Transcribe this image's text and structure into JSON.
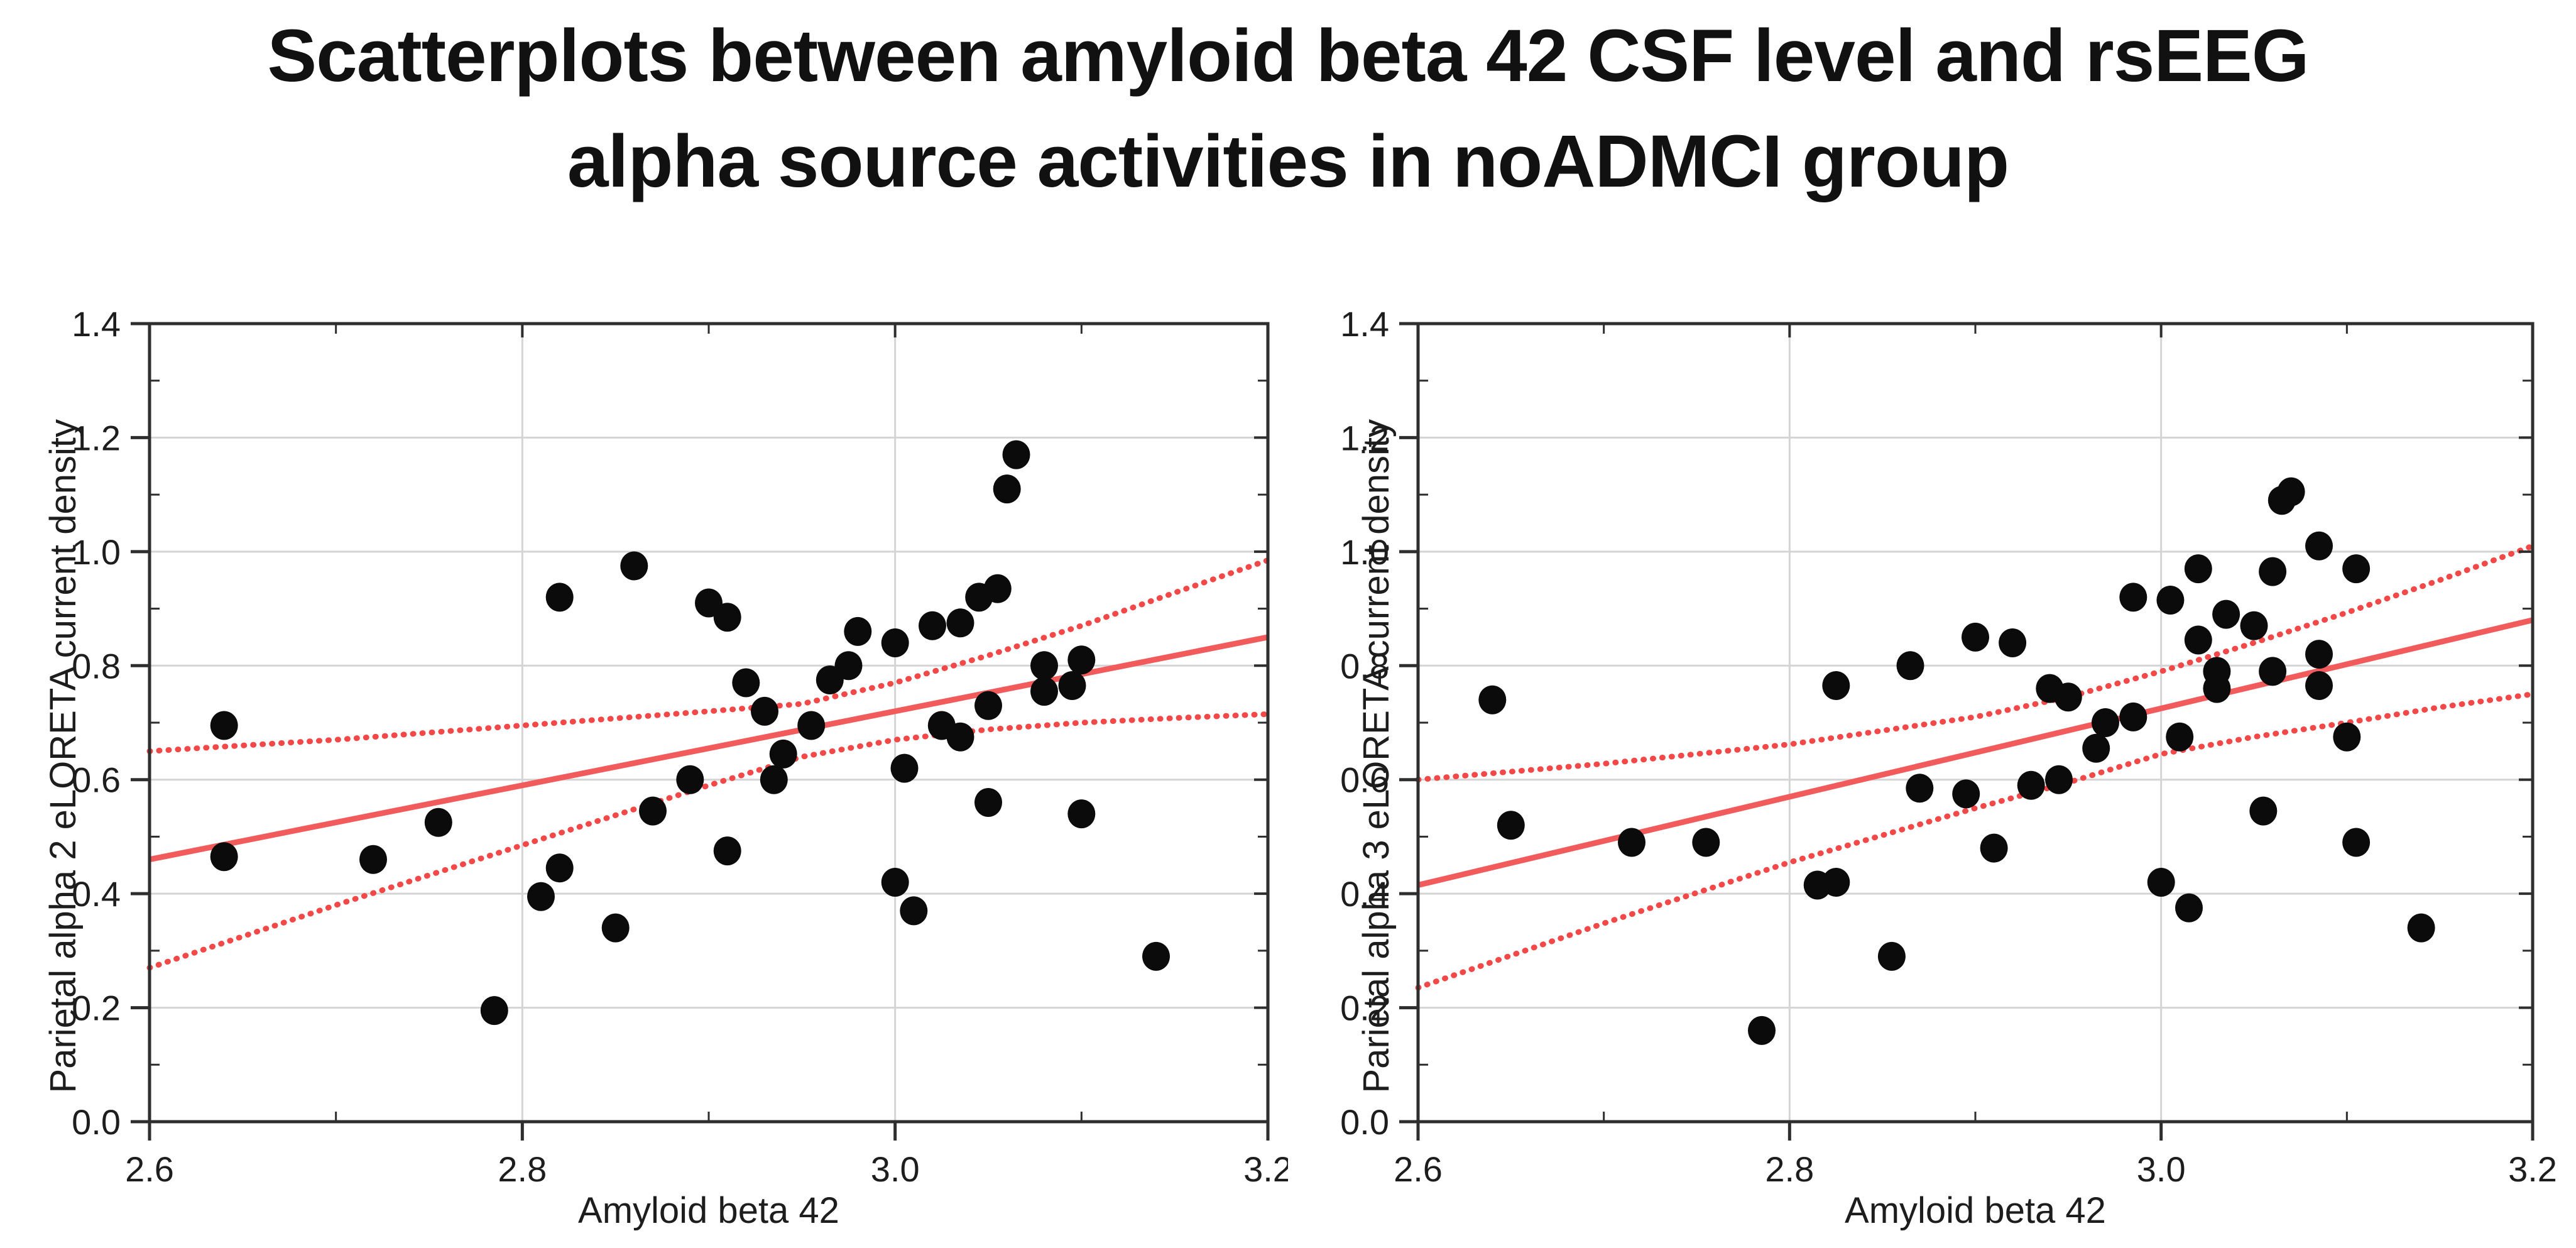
{
  "page": {
    "background": "#ffffff"
  },
  "title": {
    "line1": "Scatterplots between amyloid beta 42 CSF level and rsEEG",
    "line2": "alpha source activities in noADMCI group"
  },
  "colors": {
    "regression": "#f25b5b",
    "ci_dashed": "#f34848",
    "grid": "#d4d4d4",
    "frame": "#2e2e2e",
    "point": "#0b0b0b",
    "text": "#1d1d1d"
  },
  "chart_data": [
    {
      "type": "scatter",
      "panel": "left",
      "xlabel": "Amyloid beta 42",
      "ylabel": "Parietal alpha 2 eLORETA current density",
      "xlim": [
        2.6,
        3.2
      ],
      "ylim": [
        0.0,
        1.4
      ],
      "x_ticks": [
        2.6,
        2.8,
        3.0,
        3.2
      ],
      "x_tick_labels": [
        "2.6",
        "2.8",
        "3.0",
        "3.2"
      ],
      "x_minor_ticks": [
        2.7,
        2.9,
        3.1
      ],
      "y_ticks": [
        0.0,
        0.2,
        0.4,
        0.6,
        0.8,
        1.0,
        1.2,
        1.4
      ],
      "y_tick_labels": [
        "0.0",
        "0.2",
        "0.4",
        "0.6",
        "0.8",
        "1.0",
        "1.2",
        "1.4"
      ],
      "y_minor_ticks": [
        0.1,
        0.3,
        0.5,
        0.7,
        0.9,
        1.1,
        1.3
      ],
      "grid": true,
      "legend": "none",
      "points": [
        [
          2.64,
          0.695
        ],
        [
          2.64,
          0.465
        ],
        [
          2.72,
          0.46
        ],
        [
          2.755,
          0.525
        ],
        [
          2.785,
          0.195
        ],
        [
          2.81,
          0.395
        ],
        [
          2.82,
          0.445
        ],
        [
          2.82,
          0.92
        ],
        [
          2.85,
          0.34
        ],
        [
          2.86,
          0.975
        ],
        [
          2.87,
          0.545
        ],
        [
          2.89,
          0.6
        ],
        [
          2.9,
          0.91
        ],
        [
          2.91,
          0.885
        ],
        [
          2.91,
          0.475
        ],
        [
          2.92,
          0.77
        ],
        [
          2.93,
          0.72
        ],
        [
          2.935,
          0.6
        ],
        [
          2.94,
          0.645
        ],
        [
          2.955,
          0.695
        ],
        [
          2.965,
          0.775
        ],
        [
          2.975,
          0.8
        ],
        [
          2.98,
          0.86
        ],
        [
          3.0,
          0.84
        ],
        [
          3.0,
          0.42
        ],
        [
          3.005,
          0.62
        ],
        [
          3.01,
          0.37
        ],
        [
          3.02,
          0.87
        ],
        [
          3.035,
          0.875
        ],
        [
          3.025,
          0.695
        ],
        [
          3.035,
          0.675
        ],
        [
          3.045,
          0.92
        ],
        [
          3.055,
          0.935
        ],
        [
          3.05,
          0.73
        ],
        [
          3.05,
          0.56
        ],
        [
          3.06,
          1.11
        ],
        [
          3.065,
          1.17
        ],
        [
          3.08,
          0.8
        ],
        [
          3.1,
          0.81
        ],
        [
          3.08,
          0.755
        ],
        [
          3.095,
          0.765
        ],
        [
          3.1,
          0.54
        ],
        [
          3.14,
          0.29
        ]
      ],
      "regression": [
        [
          2.6,
          0.46
        ],
        [
          3.2,
          0.85
        ]
      ],
      "ci_upper": [
        [
          2.6,
          0.65
        ],
        [
          2.7,
          0.67
        ],
        [
          2.8,
          0.695
        ],
        [
          2.9,
          0.72
        ],
        [
          2.95,
          0.733
        ],
        [
          3.0,
          0.77
        ],
        [
          3.05,
          0.818
        ],
        [
          3.1,
          0.87
        ],
        [
          3.15,
          0.928
        ],
        [
          3.2,
          0.985
        ]
      ],
      "ci_lower": [
        [
          2.6,
          0.27
        ],
        [
          2.7,
          0.38
        ],
        [
          2.8,
          0.485
        ],
        [
          2.9,
          0.59
        ],
        [
          2.95,
          0.64
        ],
        [
          3.0,
          0.67
        ],
        [
          3.05,
          0.688
        ],
        [
          3.1,
          0.7
        ],
        [
          3.15,
          0.708
        ],
        [
          3.2,
          0.715
        ]
      ]
    },
    {
      "type": "scatter",
      "panel": "right",
      "xlabel": "Amyloid beta 42",
      "ylabel": "Parietal alpha 3 eLORETA current density",
      "xlim": [
        2.6,
        3.2
      ],
      "ylim": [
        0.0,
        1.4
      ],
      "x_ticks": [
        2.6,
        2.8,
        3.0,
        3.2
      ],
      "x_tick_labels": [
        "2.6",
        "2.8",
        "3.0",
        "3.2"
      ],
      "x_minor_ticks": [
        2.7,
        2.9,
        3.1
      ],
      "y_ticks": [
        0.0,
        0.2,
        0.4,
        0.6,
        0.8,
        1.0,
        1.2,
        1.4
      ],
      "y_tick_labels": [
        "0.0",
        "0.2",
        "0.4",
        "0.6",
        "0.8",
        "1.0",
        "1.2",
        "1.4"
      ],
      "y_minor_ticks": [
        0.1,
        0.3,
        0.5,
        0.7,
        0.9,
        1.1,
        1.3
      ],
      "grid": true,
      "legend": "none",
      "points": [
        [
          2.64,
          0.74
        ],
        [
          2.65,
          0.52
        ],
        [
          2.715,
          0.49
        ],
        [
          2.755,
          0.49
        ],
        [
          2.785,
          0.16
        ],
        [
          2.815,
          0.415
        ],
        [
          2.825,
          0.42
        ],
        [
          2.825,
          0.765
        ],
        [
          2.855,
          0.29
        ],
        [
          2.865,
          0.8
        ],
        [
          2.87,
          0.585
        ],
        [
          2.895,
          0.575
        ],
        [
          2.9,
          0.85
        ],
        [
          2.91,
          0.48
        ],
        [
          2.92,
          0.84
        ],
        [
          2.93,
          0.59
        ],
        [
          2.945,
          0.6
        ],
        [
          2.94,
          0.76
        ],
        [
          2.95,
          0.745
        ],
        [
          2.965,
          0.655
        ],
        [
          2.97,
          0.7
        ],
        [
          2.985,
          0.71
        ],
        [
          2.985,
          0.92
        ],
        [
          3.005,
          0.915
        ],
        [
          3.0,
          0.42
        ],
        [
          3.01,
          0.675
        ],
        [
          3.015,
          0.375
        ],
        [
          3.02,
          0.845
        ],
        [
          3.02,
          0.97
        ],
        [
          3.03,
          0.79
        ],
        [
          3.03,
          0.76
        ],
        [
          3.035,
          0.89
        ],
        [
          3.05,
          0.87
        ],
        [
          3.055,
          0.545
        ],
        [
          3.06,
          0.965
        ],
        [
          3.06,
          0.79
        ],
        [
          3.065,
          1.09
        ],
        [
          3.07,
          1.105
        ],
        [
          3.085,
          1.01
        ],
        [
          3.085,
          0.82
        ],
        [
          3.085,
          0.765
        ],
        [
          3.1,
          0.675
        ],
        [
          3.105,
          0.97
        ],
        [
          3.105,
          0.49
        ],
        [
          3.14,
          0.34
        ]
      ],
      "regression": [
        [
          2.6,
          0.415
        ],
        [
          3.2,
          0.88
        ]
      ],
      "ci_upper": [
        [
          2.6,
          0.6
        ],
        [
          2.7,
          0.628
        ],
        [
          2.8,
          0.662
        ],
        [
          2.9,
          0.71
        ],
        [
          2.95,
          0.745
        ],
        [
          3.0,
          0.79
        ],
        [
          3.05,
          0.84
        ],
        [
          3.1,
          0.893
        ],
        [
          3.15,
          0.95
        ],
        [
          3.2,
          1.01
        ]
      ],
      "ci_lower": [
        [
          2.6,
          0.235
        ],
        [
          2.7,
          0.348
        ],
        [
          2.8,
          0.455
        ],
        [
          2.9,
          0.55
        ],
        [
          2.95,
          0.595
        ],
        [
          3.0,
          0.645
        ],
        [
          3.05,
          0.675
        ],
        [
          3.1,
          0.7
        ],
        [
          3.15,
          0.727
        ],
        [
          3.2,
          0.75
        ]
      ]
    }
  ]
}
